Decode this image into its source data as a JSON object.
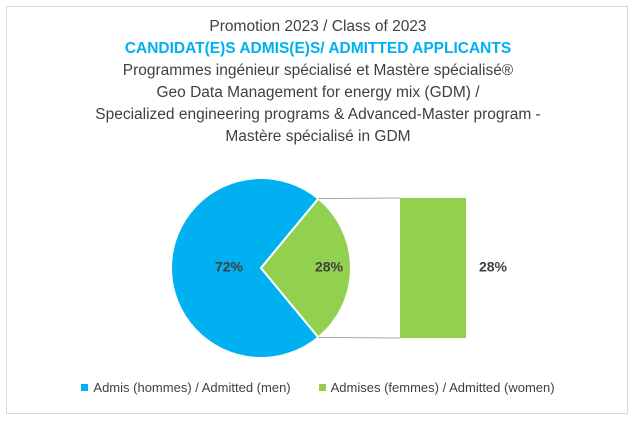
{
  "chart_data": {
    "type": "pie",
    "variant": "pie-of-pie",
    "title_lines": [
      "Promotion 2023 / Class of 2023",
      "CANDIDAT(E)S ADMIS(E)S/ ADMITTED APPLICANTS",
      "Programmes ingénieur spécialisé et Mastère spécialisé®",
      "Geo Data Management for energy mix (GDM) /",
      "Specialized engineering programs & Advanced-Master program -",
      "Mastère spécialisé in GDM"
    ],
    "categories": [
      "Admis (hommes) / Admitted (men)",
      "Admises (femmes) / Admitted (women)"
    ],
    "values": [
      72,
      28
    ],
    "labels": [
      "72%",
      "28%"
    ],
    "secondary": {
      "categories": [
        "Admises (femmes) / Admitted (women)"
      ],
      "values": [
        28
      ],
      "labels": [
        "28%"
      ]
    },
    "colors": [
      "#00b0f0",
      "#92d050"
    ],
    "legend_position": "bottom"
  }
}
